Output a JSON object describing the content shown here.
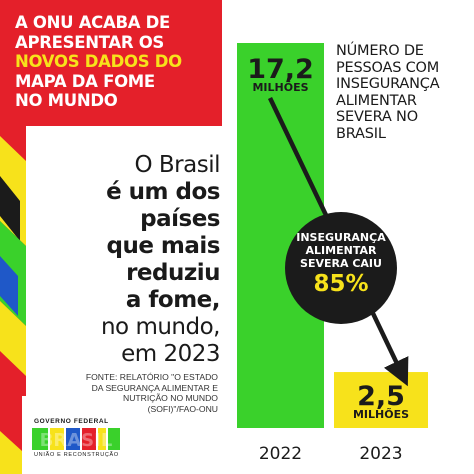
{
  "banner": {
    "lines": [
      "A ONU ACABA DE",
      "APRESENTAR OS",
      "NOVOS DADOS DO",
      "MAPA DA FOME",
      "NO MUNDO"
    ],
    "highlight_line": 2
  },
  "main_text": [
    {
      "text": "O Brasil",
      "bold": false
    },
    {
      "text": "é um dos",
      "bold": true
    },
    {
      "text": "países",
      "bold": true
    },
    {
      "text": "que mais",
      "bold": true
    },
    {
      "text": "reduziu",
      "bold": true
    },
    {
      "text": "a fome,",
      "bold": true
    },
    {
      "text": "no mundo,",
      "bold": false
    },
    {
      "text": "em 2023",
      "bold": false
    }
  ],
  "source": [
    "FONTE: RELATÓRIO \"O ESTADO",
    "DA SEGURANÇA ALIMENTAR E",
    "NUTRIÇÃO NO MUNDO",
    "(SOFI)\"/FAO-ONU"
  ],
  "logo": {
    "gov": "GOVERNO FEDERAL",
    "brasil": "BRASIL",
    "sub": "UNIÃO E RECONSTRUÇÃO"
  },
  "chart_data": {
    "type": "bar",
    "title": "NÚMERO DE PESSOAS COM INSEGURANÇA ALIMENTAR SEVERA NO BRASIL",
    "title_lines": [
      "NÚMERO DE",
      "PESSOAS COM",
      "INSEGURANÇA",
      "ALIMENTAR",
      "SEVERA NO",
      "BRASIL"
    ],
    "categories": [
      "2022",
      "2023"
    ],
    "values": [
      17.2,
      2.5
    ],
    "value_labels": [
      "17,2",
      "2,5"
    ],
    "unit_label": "MILHÕES",
    "bar_colors": [
      "#3ad12b",
      "#f7e21b"
    ],
    "ylim": [
      0,
      17.2
    ],
    "annotation": {
      "lines": [
        "INSEGURANÇA",
        "ALIMENTAR",
        "SEVERA CAIU"
      ],
      "value": "85%"
    }
  },
  "colors": {
    "red": "#e4202a",
    "yellow": "#f7e21b",
    "green": "#3ad12b",
    "blue": "#1f58c8",
    "dark": "#1b1b1b"
  }
}
